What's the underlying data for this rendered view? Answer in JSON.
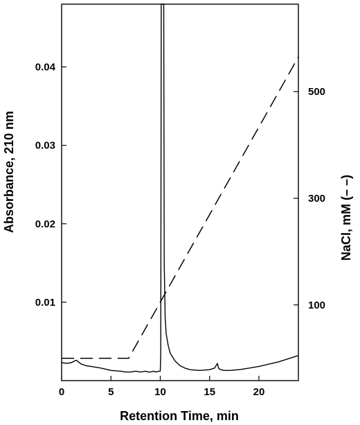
{
  "chart_data": {
    "type": "line",
    "xlabel": "Retention Time, min",
    "ylabel_left": "Absorbance, 210 nm",
    "ylabel_right": "NaCl, mM (– –)",
    "xlim": [
      0,
      24
    ],
    "ylim_left": [
      0.0,
      0.048
    ],
    "ylim_right": [
      -42,
      664
    ],
    "x_ticks": [
      0,
      5,
      10,
      15,
      20
    ],
    "y_left_ticks": [
      0.01,
      0.02,
      0.03,
      0.04
    ],
    "y_right_ticks": [
      100,
      300,
      500
    ],
    "grid": false,
    "series": [
      {
        "axis": "left",
        "style": "solid",
        "x": [
          0,
          0.5,
          1,
          1.3,
          1.5,
          1.7,
          2,
          2.5,
          3,
          4,
          5,
          6,
          6.5,
          7,
          7.5,
          8,
          8.5,
          8.8,
          9,
          9.3,
          9.6,
          9.8,
          10,
          10.05,
          10.1,
          10.15,
          10.2,
          10.25,
          10.3,
          10.35,
          10.4,
          10.5,
          10.6,
          10.8,
          11,
          11.5,
          12,
          12.5,
          13,
          14,
          15,
          15.5,
          15.8,
          15.9,
          16.1,
          16.5,
          17,
          18,
          19,
          20,
          21,
          22,
          23,
          24
        ],
        "values": [
          0.0023,
          0.0022,
          0.0023,
          0.0025,
          0.0026,
          0.0024,
          0.0021,
          0.0019,
          0.0018,
          0.0016,
          0.0013,
          0.0012,
          0.0011,
          0.0011,
          0.0012,
          0.0011,
          0.0012,
          0.0011,
          0.0011,
          0.0012,
          0.0011,
          0.0012,
          0.0012,
          0.0035,
          0.048,
          0.048,
          0.048,
          0.048,
          0.048,
          0.048,
          0.015,
          0.008,
          0.006,
          0.0045,
          0.0035,
          0.0025,
          0.0019,
          0.0016,
          0.0014,
          0.0013,
          0.0014,
          0.0016,
          0.0022,
          0.0016,
          0.0014,
          0.0013,
          0.0013,
          0.0014,
          0.0016,
          0.0018,
          0.0021,
          0.0024,
          0.0028,
          0.0032
        ]
      },
      {
        "axis": "right",
        "style": "dashed",
        "x": [
          0,
          6.8,
          24
        ],
        "values": [
          0,
          0,
          565
        ]
      }
    ]
  }
}
